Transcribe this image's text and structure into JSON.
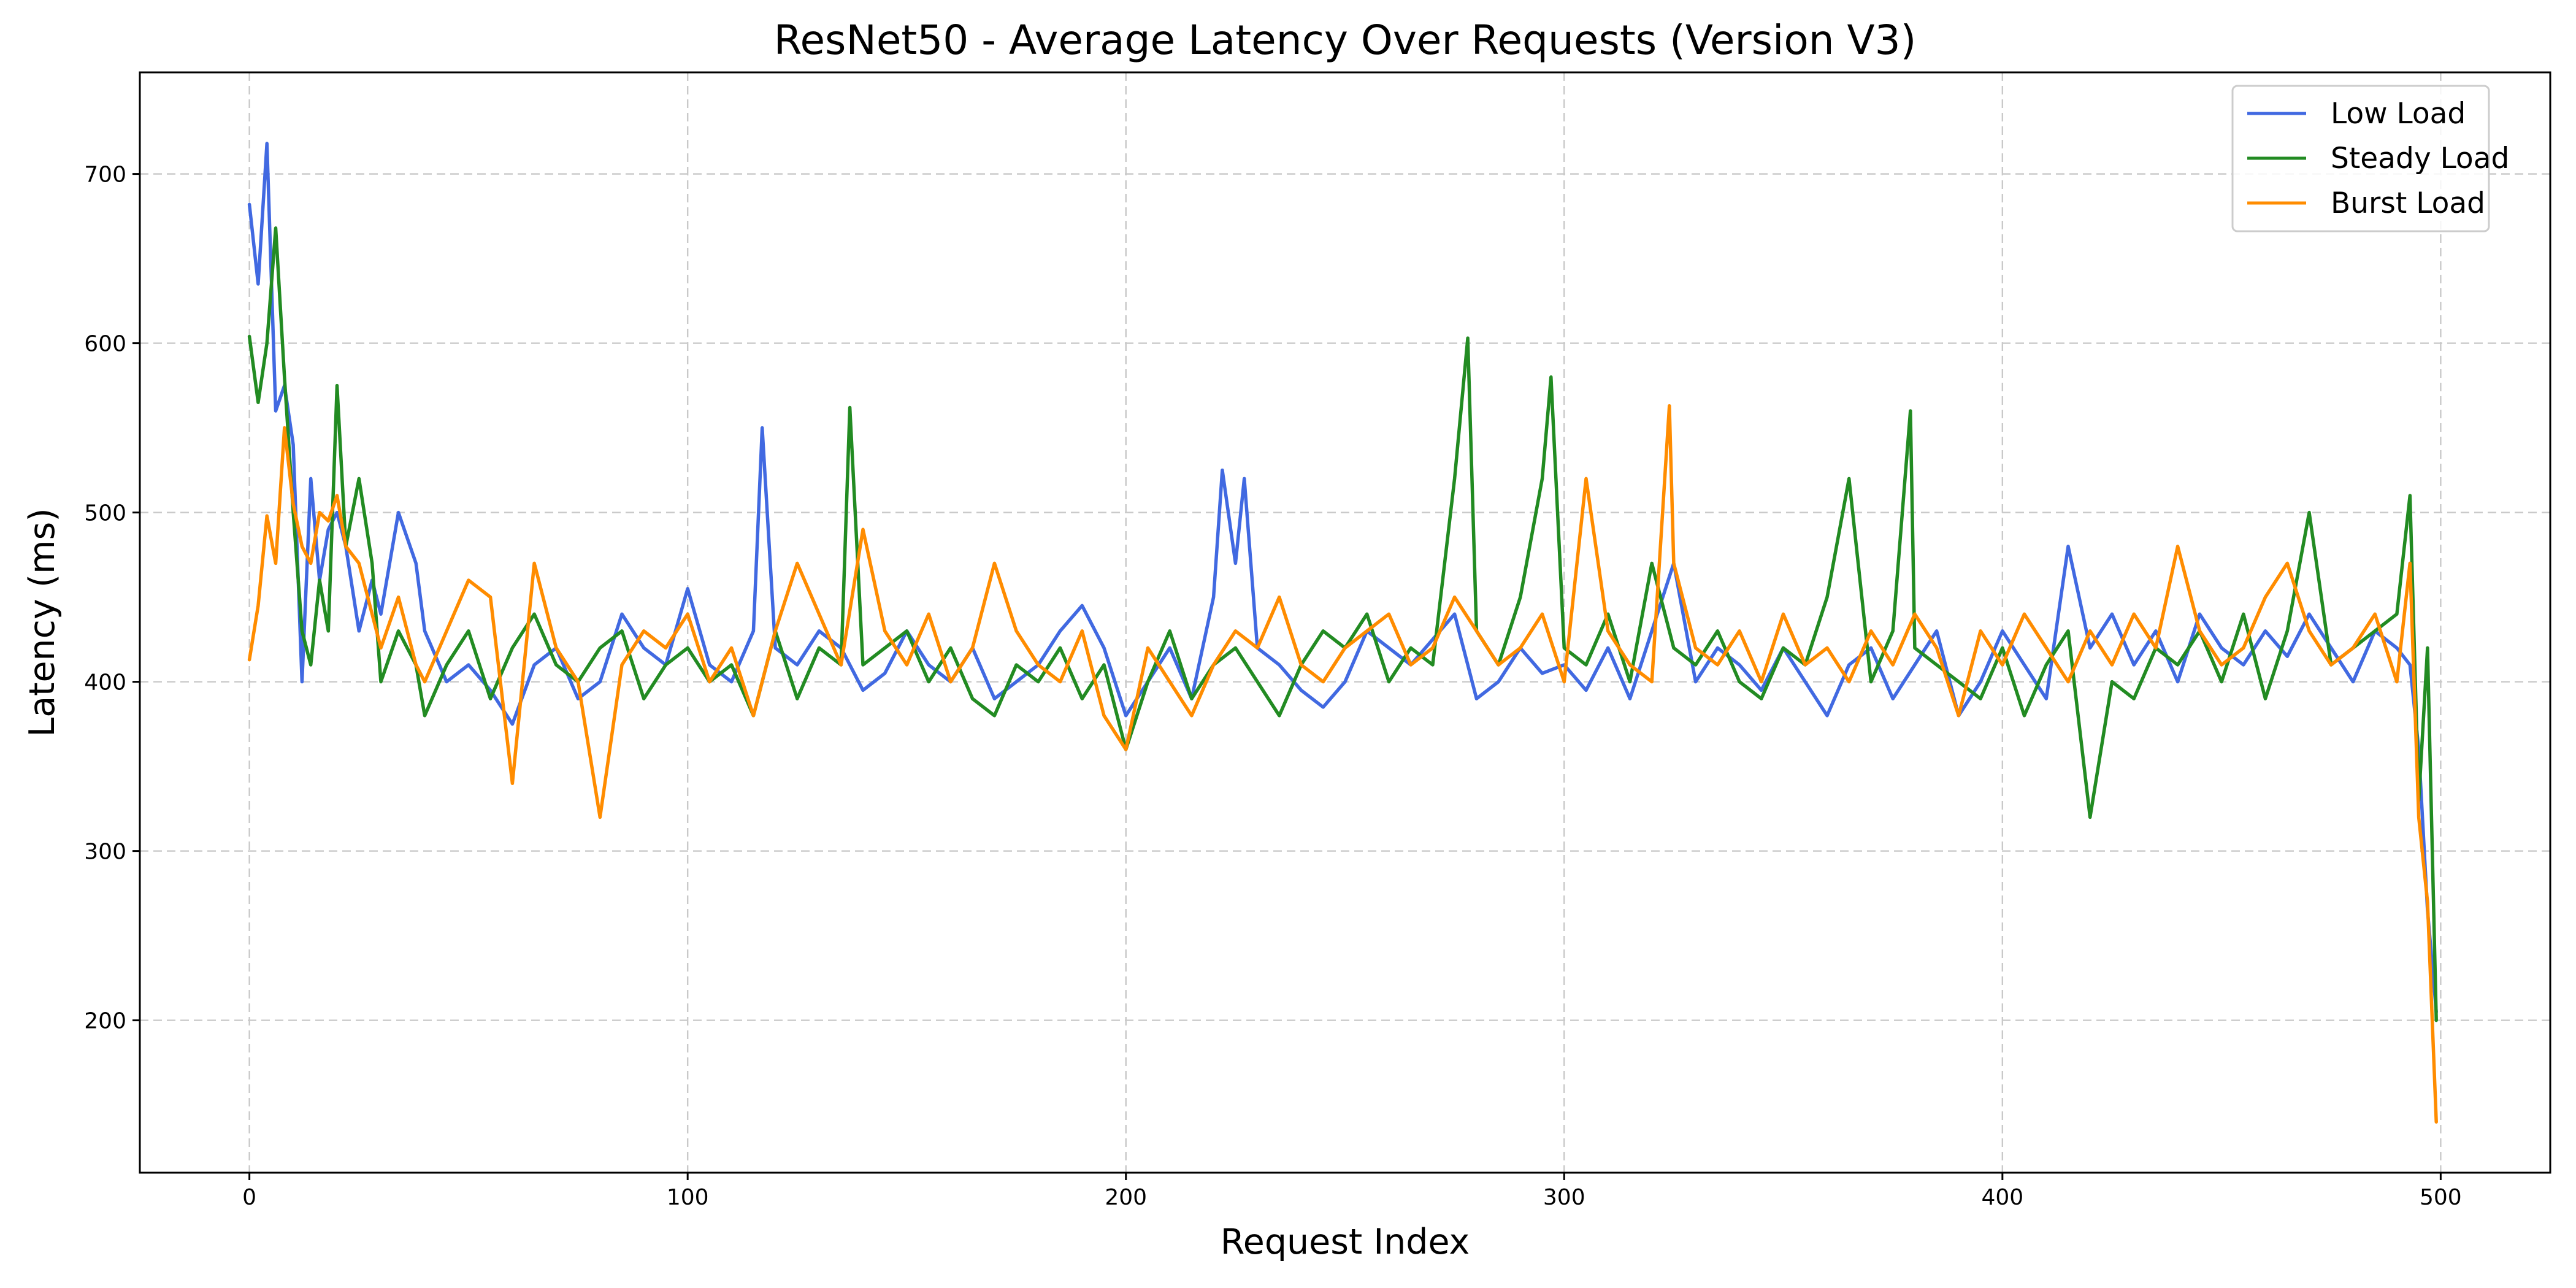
{
  "chart_data": {
    "type": "line",
    "title": "ResNet50 - Average Latency Over Requests (Version V3)",
    "xlabel": "Request Index",
    "ylabel": "Latency (ms)",
    "xlim": [
      -25,
      525
    ],
    "ylim": [
      110,
      760
    ],
    "xticks": [
      0,
      100,
      200,
      300,
      400,
      500
    ],
    "yticks": [
      200,
      300,
      400,
      500,
      600,
      700
    ],
    "grid": true,
    "legend_position": "top-right",
    "series": [
      {
        "name": "Low Load",
        "color": "#4169e1",
        "x": [
          0,
          2,
          4,
          6,
          8,
          10,
          12,
          14,
          16,
          18,
          20,
          22,
          25,
          28,
          30,
          34,
          38,
          40,
          45,
          50,
          55,
          60,
          65,
          70,
          75,
          80,
          85,
          90,
          95,
          100,
          105,
          110,
          115,
          117,
          120,
          125,
          130,
          135,
          140,
          145,
          150,
          155,
          160,
          165,
          170,
          175,
          180,
          185,
          190,
          195,
          200,
          205,
          210,
          215,
          220,
          222,
          225,
          227,
          230,
          235,
          240,
          245,
          250,
          255,
          260,
          265,
          270,
          275,
          280,
          285,
          290,
          295,
          300,
          305,
          310,
          315,
          320,
          325,
          330,
          335,
          340,
          345,
          350,
          355,
          360,
          365,
          370,
          375,
          380,
          385,
          390,
          395,
          400,
          405,
          410,
          415,
          420,
          425,
          430,
          435,
          440,
          445,
          450,
          455,
          460,
          465,
          470,
          475,
          480,
          485,
          490,
          493,
          495,
          497,
          499
        ],
        "values": [
          682,
          635,
          718,
          560,
          575,
          540,
          400,
          520,
          460,
          490,
          500,
          480,
          430,
          460,
          440,
          500,
          470,
          430,
          400,
          410,
          395,
          375,
          410,
          420,
          390,
          400,
          440,
          420,
          410,
          455,
          410,
          400,
          430,
          550,
          420,
          410,
          430,
          420,
          395,
          405,
          430,
          410,
          400,
          420,
          390,
          400,
          410,
          430,
          445,
          420,
          380,
          400,
          420,
          390,
          450,
          525,
          470,
          520,
          420,
          410,
          395,
          385,
          400,
          430,
          420,
          410,
          425,
          440,
          390,
          400,
          420,
          405,
          410,
          395,
          420,
          390,
          430,
          470,
          400,
          420,
          410,
          395,
          420,
          400,
          380,
          410,
          420,
          390,
          410,
          430,
          380,
          400,
          430,
          410,
          390,
          480,
          420,
          440,
          410,
          430,
          400,
          440,
          420,
          410,
          430,
          415,
          440,
          420,
          400,
          430,
          420,
          410,
          360,
          265,
          205
        ]
      },
      {
        "name": "Steady Load",
        "color": "#228b22",
        "x": [
          0,
          2,
          4,
          6,
          8,
          10,
          12,
          14,
          16,
          18,
          20,
          22,
          25,
          28,
          30,
          34,
          38,
          40,
          45,
          50,
          55,
          60,
          65,
          70,
          75,
          80,
          85,
          90,
          95,
          100,
          105,
          110,
          115,
          120,
          125,
          130,
          135,
          137,
          140,
          145,
          150,
          155,
          160,
          165,
          170,
          175,
          180,
          185,
          190,
          195,
          200,
          205,
          210,
          215,
          220,
          225,
          230,
          235,
          240,
          245,
          250,
          255,
          260,
          265,
          270,
          275,
          278,
          280,
          285,
          290,
          295,
          297,
          300,
          305,
          310,
          315,
          320,
          325,
          330,
          335,
          340,
          345,
          350,
          355,
          360,
          365,
          370,
          375,
          379,
          380,
          385,
          390,
          395,
          400,
          405,
          410,
          415,
          420,
          425,
          430,
          435,
          440,
          445,
          450,
          455,
          460,
          465,
          470,
          475,
          480,
          485,
          490,
          493,
          495,
          497,
          499
        ],
        "values": [
          604,
          565,
          600,
          668,
          580,
          500,
          430,
          410,
          460,
          430,
          575,
          480,
          520,
          470,
          400,
          430,
          410,
          380,
          410,
          430,
          390,
          420,
          440,
          410,
          400,
          420,
          430,
          390,
          410,
          420,
          400,
          410,
          380,
          430,
          390,
          420,
          410,
          562,
          410,
          420,
          430,
          400,
          420,
          390,
          380,
          410,
          400,
          420,
          390,
          410,
          360,
          400,
          430,
          390,
          410,
          420,
          400,
          380,
          410,
          430,
          420,
          440,
          400,
          420,
          410,
          520,
          603,
          430,
          410,
          450,
          520,
          580,
          420,
          410,
          440,
          400,
          470,
          420,
          410,
          430,
          400,
          390,
          420,
          410,
          450,
          520,
          400,
          430,
          560,
          420,
          410,
          400,
          390,
          420,
          380,
          410,
          430,
          320,
          400,
          390,
          420,
          410,
          430,
          400,
          440,
          390,
          430,
          500,
          410,
          420,
          430,
          440,
          510,
          330,
          420,
          200
        ]
      },
      {
        "name": "Burst Load",
        "color": "#ff8c00",
        "x": [
          0,
          2,
          4,
          6,
          8,
          10,
          12,
          14,
          16,
          18,
          20,
          22,
          25,
          28,
          30,
          34,
          38,
          40,
          45,
          50,
          55,
          60,
          65,
          70,
          75,
          80,
          85,
          90,
          95,
          100,
          105,
          110,
          115,
          120,
          125,
          130,
          135,
          140,
          145,
          150,
          155,
          160,
          165,
          170,
          175,
          180,
          185,
          190,
          195,
          200,
          205,
          210,
          215,
          220,
          225,
          230,
          235,
          240,
          245,
          250,
          255,
          260,
          265,
          270,
          275,
          280,
          285,
          290,
          295,
          300,
          305,
          310,
          315,
          320,
          324,
          325,
          330,
          335,
          340,
          345,
          350,
          355,
          360,
          365,
          370,
          375,
          380,
          385,
          390,
          395,
          400,
          405,
          410,
          415,
          420,
          425,
          430,
          435,
          440,
          445,
          450,
          455,
          460,
          465,
          470,
          475,
          480,
          485,
          490,
          493,
          495,
          497,
          499
        ],
        "values": [
          413,
          445,
          498,
          470,
          550,
          505,
          480,
          470,
          500,
          495,
          510,
          480,
          470,
          440,
          420,
          450,
          410,
          400,
          430,
          460,
          450,
          340,
          470,
          420,
          400,
          320,
          410,
          430,
          420,
          440,
          400,
          420,
          380,
          430,
          470,
          440,
          410,
          490,
          430,
          410,
          440,
          400,
          420,
          470,
          430,
          410,
          400,
          430,
          380,
          360,
          420,
          400,
          380,
          410,
          430,
          420,
          450,
          410,
          400,
          420,
          430,
          440,
          410,
          420,
          450,
          430,
          410,
          420,
          440,
          400,
          520,
          430,
          410,
          400,
          563,
          470,
          420,
          410,
          430,
          400,
          440,
          410,
          420,
          400,
          430,
          410,
          440,
          420,
          380,
          430,
          410,
          440,
          420,
          400,
          430,
          410,
          440,
          420,
          480,
          430,
          410,
          420,
          450,
          470,
          430,
          410,
          420,
          440,
          400,
          470,
          320,
          270,
          140
        ]
      }
    ]
  }
}
